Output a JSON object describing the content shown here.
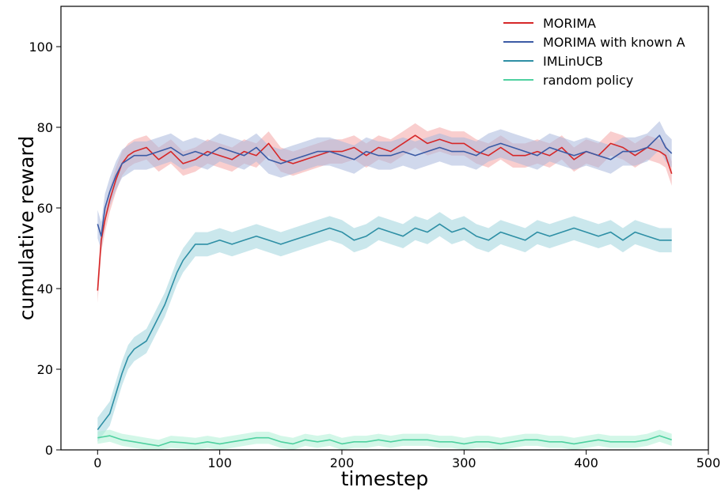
{
  "chart_data": {
    "type": "line",
    "xlabel": "timestep",
    "ylabel": "cumulative reward",
    "xlim": [
      -30,
      500
    ],
    "ylim": [
      0,
      110
    ],
    "xticks": [
      0,
      100,
      200,
      300,
      400,
      500
    ],
    "yticks": [
      0,
      20,
      40,
      60,
      80,
      100
    ],
    "grid": false,
    "legend": "top-right",
    "series": [
      {
        "name": "MORIMA",
        "color": "#d62728",
        "band_color": "#f4a6a6",
        "x": [
          0,
          3,
          6,
          10,
          15,
          20,
          25,
          30,
          40,
          50,
          60,
          70,
          80,
          90,
          100,
          110,
          120,
          130,
          140,
          150,
          160,
          170,
          180,
          190,
          200,
          210,
          220,
          230,
          240,
          250,
          260,
          270,
          280,
          290,
          300,
          310,
          320,
          330,
          340,
          350,
          360,
          370,
          380,
          390,
          400,
          410,
          420,
          430,
          440,
          450,
          460,
          465,
          470
        ],
        "y": [
          39.5,
          52,
          57,
          62,
          67,
          71,
          73,
          74,
          75,
          72,
          74,
          71,
          72,
          74,
          73,
          72,
          74,
          73,
          76,
          72,
          71,
          72,
          73,
          74,
          74,
          75,
          73,
          75,
          74,
          76,
          78,
          76,
          77,
          76,
          76,
          74,
          73,
          75,
          73,
          73,
          74,
          73,
          75,
          72,
          74,
          73,
          76,
          75,
          73,
          75,
          74,
          73,
          68.5
        ],
        "band": 3
      },
      {
        "name": "MORIMA with known A",
        "color": "#3b5ba5",
        "band_color": "#a9b8dc",
        "x": [
          0,
          3,
          6,
          10,
          15,
          20,
          25,
          30,
          40,
          50,
          60,
          70,
          80,
          90,
          100,
          110,
          120,
          130,
          140,
          150,
          160,
          170,
          180,
          190,
          200,
          210,
          220,
          230,
          240,
          250,
          260,
          270,
          280,
          290,
          300,
          310,
          320,
          330,
          340,
          350,
          360,
          370,
          380,
          390,
          400,
          410,
          420,
          430,
          440,
          450,
          460,
          465,
          470
        ],
        "y": [
          56,
          53,
          60,
          64,
          68,
          71,
          72,
          73,
          73,
          74,
          75,
          73,
          74,
          73,
          75,
          74,
          73,
          75,
          72,
          71,
          72,
          73,
          74,
          74,
          73,
          72,
          74,
          73,
          73,
          74,
          73,
          74,
          75,
          74,
          74,
          73,
          75,
          76,
          75,
          74,
          73,
          75,
          74,
          73,
          74,
          73,
          72,
          74,
          74,
          75,
          78,
          75,
          73.5
        ],
        "band": 3.5
      },
      {
        "name": "IMLinUCB",
        "color": "#2e8fa5",
        "band_color": "#9fd3dd",
        "x": [
          0,
          5,
          10,
          15,
          20,
          25,
          30,
          35,
          40,
          45,
          50,
          55,
          60,
          65,
          70,
          75,
          80,
          90,
          100,
          110,
          120,
          130,
          140,
          150,
          160,
          170,
          180,
          190,
          200,
          210,
          220,
          230,
          240,
          250,
          260,
          270,
          280,
          290,
          300,
          310,
          320,
          330,
          340,
          350,
          360,
          370,
          380,
          390,
          400,
          410,
          420,
          430,
          440,
          450,
          460,
          470
        ],
        "y": [
          5,
          7,
          9,
          14,
          19,
          23,
          25,
          26,
          27,
          30,
          33,
          36,
          40,
          44,
          47,
          49,
          51,
          51,
          52,
          51,
          52,
          53,
          52,
          51,
          52,
          53,
          54,
          55,
          54,
          52,
          53,
          55,
          54,
          53,
          55,
          54,
          56,
          54,
          55,
          53,
          52,
          54,
          53,
          52,
          54,
          53,
          54,
          55,
          54,
          53,
          54,
          52,
          54,
          53,
          52,
          52
        ],
        "band": 3
      },
      {
        "name": "random policy",
        "color": "#4fd1a0",
        "band_color": "#aef0d5",
        "x": [
          0,
          10,
          20,
          30,
          40,
          50,
          60,
          70,
          80,
          90,
          100,
          110,
          120,
          130,
          140,
          150,
          160,
          170,
          180,
          190,
          200,
          210,
          220,
          230,
          240,
          250,
          260,
          270,
          280,
          290,
          300,
          310,
          320,
          330,
          340,
          350,
          360,
          370,
          380,
          390,
          400,
          410,
          420,
          430,
          440,
          450,
          460,
          470
        ],
        "y": [
          3,
          3.5,
          2.5,
          2,
          1.5,
          1,
          2,
          1.8,
          1.5,
          2,
          1.5,
          2,
          2.5,
          3,
          3,
          2,
          1.5,
          2.5,
          2,
          2.5,
          1.5,
          2,
          2,
          2.5,
          2,
          2.5,
          2.5,
          2.5,
          2,
          2,
          1.5,
          2,
          2,
          1.5,
          2,
          2.5,
          2.5,
          2,
          2,
          1.5,
          2,
          2.5,
          2,
          2,
          2,
          2.5,
          3.5,
          2.5
        ],
        "band": 1.5
      }
    ]
  }
}
